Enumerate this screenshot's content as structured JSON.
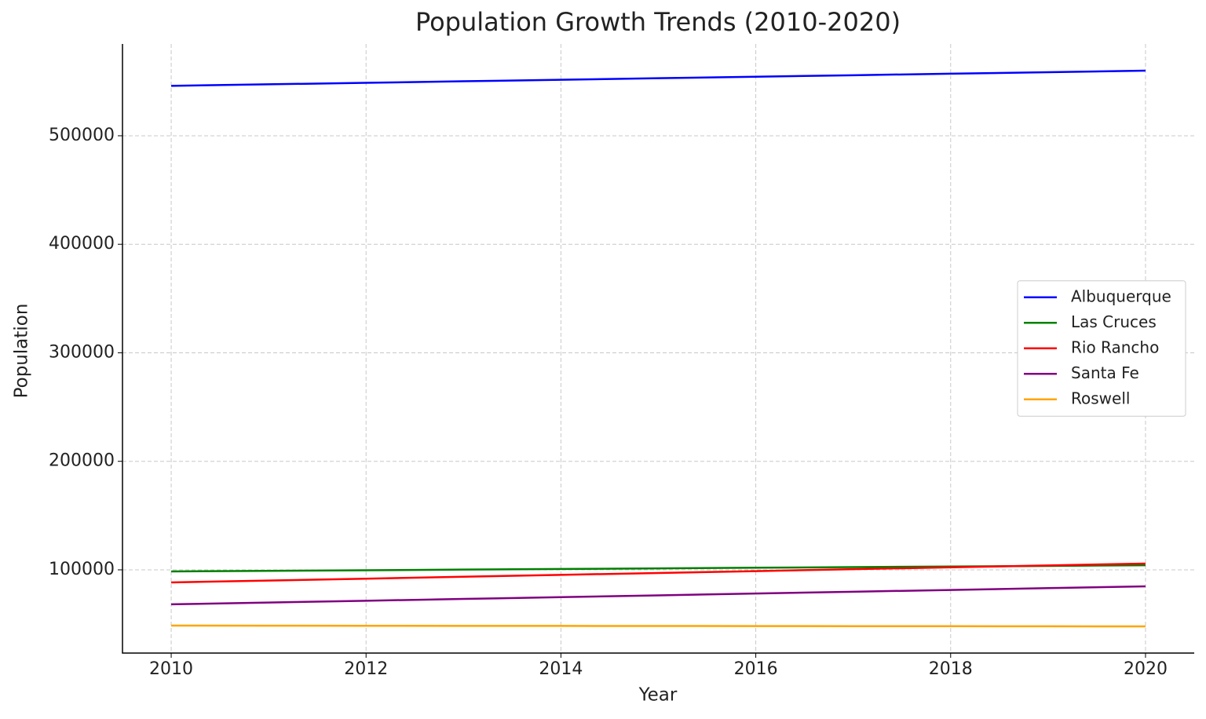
{
  "chart_data": {
    "type": "line",
    "title": "Population Growth Trends (2010-2020)",
    "x_label": "Year",
    "y_label": "Population",
    "x": [
      2010,
      2011,
      2012,
      2013,
      2014,
      2015,
      2016,
      2017,
      2018,
      2019,
      2020
    ],
    "series": [
      {
        "name": "Albuquerque",
        "color": "#0000ff",
        "values": [
          546000,
          547400,
          548800,
          550200,
          551600,
          553000,
          554400,
          555800,
          557200,
          558600,
          560000
        ]
      },
      {
        "name": "Las Cruces",
        "color": "#008000",
        "values": [
          98500,
          99070,
          99640,
          100210,
          100780,
          101350,
          101920,
          102490,
          103060,
          103630,
          104200
        ]
      },
      {
        "name": "Rio Rancho",
        "color": "#ff0000",
        "values": [
          88400,
          90140,
          91880,
          93620,
          95360,
          97100,
          98840,
          100580,
          102320,
          104060,
          105800
        ]
      },
      {
        "name": "Santa Fe",
        "color": "#800080",
        "values": [
          68200,
          69860,
          71520,
          73180,
          74840,
          76500,
          78160,
          79820,
          81480,
          83140,
          84800
        ]
      },
      {
        "name": "Roswell",
        "color": "#ffa500",
        "values": [
          48600,
          48530,
          48460,
          48390,
          48320,
          48250,
          48180,
          48110,
          48040,
          47970,
          47900
        ]
      }
    ],
    "xlim": [
      2009.5,
      2020.5
    ],
    "ylim": [
      23300,
      584600
    ],
    "xticks": [
      2010,
      2012,
      2014,
      2016,
      2018,
      2020
    ],
    "yticks": [
      100000,
      200000,
      300000,
      400000,
      500000
    ],
    "grid": true,
    "legend_position": "right"
  }
}
